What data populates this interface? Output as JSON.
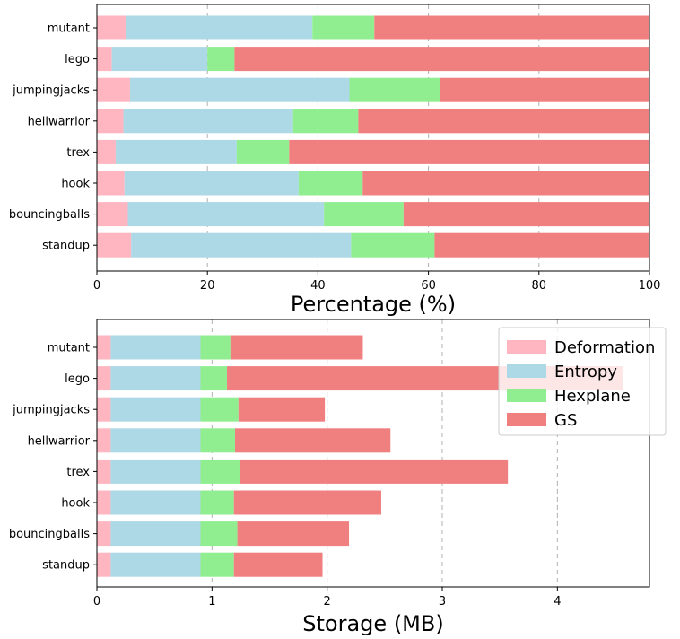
{
  "chart_data": [
    {
      "type": "bar",
      "orientation": "horizontal",
      "stacked": true,
      "categories": [
        "mutant",
        "lego",
        "jumpingjacks",
        "hellwarrior",
        "trex",
        "hook",
        "bouncingballs",
        "standup"
      ],
      "series": [
        {
          "name": "Deformation",
          "color": "#ffb6c1",
          "values": [
            5.2,
            2.7,
            6.0,
            4.8,
            3.4,
            5.0,
            5.6,
            6.2
          ]
        },
        {
          "name": "Entropy",
          "color": "#add8e6",
          "values": [
            33.8,
            17.3,
            39.7,
            30.7,
            21.9,
            31.5,
            35.5,
            39.8
          ]
        },
        {
          "name": "Hexplane",
          "color": "#90ee90",
          "values": [
            11.2,
            4.9,
            16.4,
            11.8,
            9.5,
            11.6,
            14.4,
            15.1
          ]
        },
        {
          "name": "GS",
          "color": "#f08080",
          "values": [
            49.8,
            75.1,
            37.9,
            52.7,
            65.2,
            51.9,
            44.5,
            38.9
          ]
        }
      ],
      "xlabel": "Percentage (%)",
      "xlim": [
        0,
        100
      ],
      "xticks": [
        0,
        20,
        40,
        60,
        80,
        100
      ],
      "grid": "x, dashed"
    },
    {
      "type": "bar",
      "orientation": "horizontal",
      "stacked": true,
      "categories": [
        "mutant",
        "lego",
        "jumpingjacks",
        "hellwarrior",
        "trex",
        "hook",
        "bouncingballs",
        "standup"
      ],
      "series": [
        {
          "name": "Deformation",
          "color": "#ffb6c1",
          "values": [
            0.12,
            0.12,
            0.12,
            0.12,
            0.12,
            0.12,
            0.12,
            0.12
          ]
        },
        {
          "name": "Entropy",
          "color": "#add8e6",
          "values": [
            0.78,
            0.78,
            0.78,
            0.78,
            0.78,
            0.78,
            0.78,
            0.78
          ]
        },
        {
          "name": "Hexplane",
          "color": "#90ee90",
          "values": [
            0.26,
            0.23,
            0.33,
            0.3,
            0.34,
            0.29,
            0.32,
            0.29
          ]
        },
        {
          "name": "GS",
          "color": "#f08080",
          "values": [
            1.15,
            3.44,
            0.75,
            1.35,
            2.33,
            1.28,
            0.97,
            0.77
          ]
        }
      ],
      "xlabel": "Storage (MB)",
      "xlim": [
        0,
        4.8
      ],
      "xticks": [
        0,
        1,
        2,
        3,
        4
      ],
      "grid": "x, dashed",
      "legend": {
        "placement": "top-right",
        "entries": [
          "Deformation",
          "Entropy",
          "Hexplane",
          "GS"
        ]
      }
    }
  ]
}
